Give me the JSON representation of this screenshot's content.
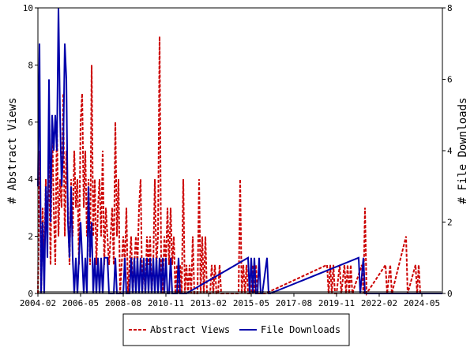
{
  "chart_data": {
    "type": "line",
    "title": "",
    "ylabel_left": "# Abstract Views",
    "ylabel_right": "# File Downloads",
    "ylim_left": [
      0,
      10
    ],
    "ylim_right": [
      0,
      8
    ],
    "yticks_left": [
      "0",
      "2",
      "4",
      "6",
      "8",
      "10"
    ],
    "yticks_right": [
      "0",
      "2",
      "4",
      "6",
      "8"
    ],
    "x_start": "2004-02",
    "x_end": "2025-06",
    "xtick_labels": [
      "2004-02",
      "2006-05",
      "2008-08",
      "2010-11",
      "2013-02",
      "2015-05",
      "2017-08",
      "2019-11",
      "2022-02",
      "2024-05"
    ],
    "grid": false,
    "legend_position": "bottom",
    "series": [
      {
        "name": "Abstract Views",
        "color": "#cc0000",
        "style": "dashed",
        "axis": "left",
        "points": [
          [
            "2004-02",
            0
          ],
          [
            "2004-03",
            5
          ],
          [
            "2004-04",
            0
          ],
          [
            "2004-05",
            3
          ],
          [
            "2004-06",
            1
          ],
          [
            "2004-07",
            4
          ],
          [
            "2004-08",
            2
          ],
          [
            "2004-09",
            5
          ],
          [
            "2004-10",
            1
          ],
          [
            "2004-11",
            6
          ],
          [
            "2004-12",
            3
          ],
          [
            "2005-01",
            1
          ],
          [
            "2005-02",
            6
          ],
          [
            "2005-03",
            2
          ],
          [
            "2005-04",
            4
          ],
          [
            "2005-05",
            3
          ],
          [
            "2005-06",
            7
          ],
          [
            "2005-07",
            2
          ],
          [
            "2005-08",
            5
          ],
          [
            "2005-09",
            3
          ],
          [
            "2005-10",
            1
          ],
          [
            "2005-11",
            4
          ],
          [
            "2005-12",
            2
          ],
          [
            "2006-01",
            5
          ],
          [
            "2006-02",
            3
          ],
          [
            "2006-03",
            4
          ],
          [
            "2006-04",
            1
          ],
          [
            "2006-05",
            6
          ],
          [
            "2006-06",
            7
          ],
          [
            "2006-07",
            3
          ],
          [
            "2006-08",
            5
          ],
          [
            "2006-09",
            2
          ],
          [
            "2006-10",
            4
          ],
          [
            "2006-11",
            1
          ],
          [
            "2006-12",
            8
          ],
          [
            "2007-01",
            2
          ],
          [
            "2007-02",
            4
          ],
          [
            "2007-03",
            1
          ],
          [
            "2007-04",
            3
          ],
          [
            "2007-05",
            4
          ],
          [
            "2007-06",
            2
          ],
          [
            "2007-07",
            5
          ],
          [
            "2007-08",
            1
          ],
          [
            "2007-09",
            3
          ],
          [
            "2007-10",
            2
          ],
          [
            "2007-11",
            1
          ],
          [
            "2007-12",
            2
          ],
          [
            "2008-01",
            3
          ],
          [
            "2008-02",
            1
          ],
          [
            "2008-03",
            6
          ],
          [
            "2008-04",
            2
          ],
          [
            "2008-05",
            4
          ],
          [
            "2008-06",
            0
          ],
          [
            "2008-07",
            1
          ],
          [
            "2008-08",
            2
          ],
          [
            "2008-09",
            1
          ],
          [
            "2008-10",
            3
          ],
          [
            "2008-11",
            0
          ],
          [
            "2008-12",
            1
          ],
          [
            "2009-01",
            2
          ],
          [
            "2009-02",
            0
          ],
          [
            "2009-03",
            1
          ],
          [
            "2009-04",
            2
          ],
          [
            "2009-05",
            1
          ],
          [
            "2009-06",
            3
          ],
          [
            "2009-07",
            4
          ],
          [
            "2009-08",
            0
          ],
          [
            "2009-09",
            1
          ],
          [
            "2009-10",
            0
          ],
          [
            "2009-11",
            2
          ],
          [
            "2009-12",
            1
          ],
          [
            "2010-01",
            2
          ],
          [
            "2010-02",
            0
          ],
          [
            "2010-03",
            1
          ],
          [
            "2010-04",
            4
          ],
          [
            "2010-05",
            1
          ],
          [
            "2010-06",
            2
          ],
          [
            "2010-07",
            9
          ],
          [
            "2010-08",
            1
          ],
          [
            "2010-09",
            0
          ],
          [
            "2010-10",
            2
          ],
          [
            "2010-11",
            1
          ],
          [
            "2010-12",
            3
          ],
          [
            "2011-01",
            1
          ],
          [
            "2011-02",
            3
          ],
          [
            "2011-03",
            1
          ],
          [
            "2011-04",
            2
          ],
          [
            "2011-05",
            0
          ],
          [
            "2011-06",
            1
          ],
          [
            "2011-07",
            0
          ],
          [
            "2011-08",
            1
          ],
          [
            "2011-09",
            0
          ],
          [
            "2011-10",
            4
          ],
          [
            "2011-11",
            0
          ],
          [
            "2011-12",
            1
          ],
          [
            "2012-01",
            0
          ],
          [
            "2012-02",
            1
          ],
          [
            "2012-03",
            0
          ],
          [
            "2012-04",
            2
          ],
          [
            "2012-05",
            0
          ],
          [
            "2012-06",
            0
          ],
          [
            "2012-07",
            0
          ],
          [
            "2012-08",
            4
          ],
          [
            "2012-09",
            0
          ],
          [
            "2012-10",
            2
          ],
          [
            "2012-11",
            0
          ],
          [
            "2012-12",
            2
          ],
          [
            "2013-01",
            0
          ],
          [
            "2013-02",
            0
          ],
          [
            "2013-03",
            0
          ],
          [
            "2013-04",
            1
          ],
          [
            "2013-05",
            0
          ],
          [
            "2013-06",
            1
          ],
          [
            "2013-07",
            0
          ],
          [
            "2013-08",
            0
          ],
          [
            "2013-09",
            1
          ],
          [
            "2013-10",
            0
          ],
          [
            "2013-11",
            0
          ],
          [
            "2013-12",
            0
          ],
          [
            "2014-01",
            0
          ],
          [
            "2014-02",
            0
          ],
          [
            "2014-03",
            0
          ],
          [
            "2014-04",
            0
          ],
          [
            "2014-05",
            0
          ],
          [
            "2014-06",
            0
          ],
          [
            "2014-07",
            0
          ],
          [
            "2014-08",
            0
          ],
          [
            "2014-09",
            0
          ],
          [
            "2014-10",
            4
          ],
          [
            "2014-11",
            0
          ],
          [
            "2014-12",
            1
          ],
          [
            "2015-01",
            0
          ],
          [
            "2015-02",
            1
          ],
          [
            "2015-03",
            0
          ],
          [
            "2015-04",
            0
          ],
          [
            "2015-05",
            0
          ],
          [
            "2015-06",
            1
          ],
          [
            "2015-07",
            0
          ],
          [
            "2015-08",
            1
          ],
          [
            "2015-09",
            0
          ],
          [
            "2015-10",
            0
          ],
          [
            "2015-11",
            0
          ],
          [
            "2015-12",
            0
          ],
          [
            "2016-01",
            0
          ],
          [
            "2016-02",
            0
          ],
          [
            "2019-05",
            1
          ],
          [
            "2019-06",
            0
          ],
          [
            "2019-07",
            1
          ],
          [
            "2019-08",
            0
          ],
          [
            "2019-09",
            1
          ],
          [
            "2019-10",
            0
          ],
          [
            "2019-11",
            0
          ],
          [
            "2020-01",
            1
          ],
          [
            "2020-02",
            0
          ],
          [
            "2020-04",
            1
          ],
          [
            "2020-05",
            0
          ],
          [
            "2020-06",
            1
          ],
          [
            "2020-07",
            0
          ],
          [
            "2020-08",
            1
          ],
          [
            "2020-09",
            0
          ],
          [
            "2021-03",
            1
          ],
          [
            "2021-04",
            0
          ],
          [
            "2021-05",
            3
          ],
          [
            "2021-06",
            0
          ],
          [
            "2022-06",
            1
          ],
          [
            "2022-07",
            0
          ],
          [
            "2022-09",
            1
          ],
          [
            "2022-10",
            0
          ],
          [
            "2023-07",
            2
          ],
          [
            "2023-08",
            0
          ],
          [
            "2024-01",
            1
          ],
          [
            "2024-02",
            0
          ],
          [
            "2024-03",
            1
          ],
          [
            "2024-04",
            0
          ],
          [
            "2025-06",
            0
          ]
        ]
      },
      {
        "name": "File Downloads",
        "color": "#0000aa",
        "style": "solid",
        "axis": "right",
        "points": [
          [
            "2004-02",
            3
          ],
          [
            "2004-03",
            7
          ],
          [
            "2004-04",
            0
          ],
          [
            "2004-05",
            2
          ],
          [
            "2004-06",
            0
          ],
          [
            "2004-07",
            3
          ],
          [
            "2004-08",
            1
          ],
          [
            "2004-09",
            6
          ],
          [
            "2004-10",
            2
          ],
          [
            "2004-11",
            5
          ],
          [
            "2004-12",
            4
          ],
          [
            "2005-01",
            5
          ],
          [
            "2005-02",
            4
          ],
          [
            "2005-03",
            8
          ],
          [
            "2005-04",
            5
          ],
          [
            "2005-05",
            3
          ],
          [
            "2005-06",
            4
          ],
          [
            "2005-07",
            7
          ],
          [
            "2005-08",
            6
          ],
          [
            "2005-09",
            2
          ],
          [
            "2005-10",
            1
          ],
          [
            "2005-11",
            3
          ],
          [
            "2005-12",
            1
          ],
          [
            "2006-01",
            0
          ],
          [
            "2006-02",
            1
          ],
          [
            "2006-03",
            0
          ],
          [
            "2006-04",
            1
          ],
          [
            "2006-05",
            2
          ],
          [
            "2006-06",
            1
          ],
          [
            "2006-07",
            0
          ],
          [
            "2006-08",
            1
          ],
          [
            "2006-09",
            0
          ],
          [
            "2006-10",
            3
          ],
          [
            "2006-11",
            1
          ],
          [
            "2006-12",
            2
          ],
          [
            "2007-01",
            0
          ],
          [
            "2007-02",
            1
          ],
          [
            "2007-03",
            0
          ],
          [
            "2007-04",
            1
          ],
          [
            "2007-05",
            0
          ],
          [
            "2007-06",
            1
          ],
          [
            "2007-07",
            0
          ],
          [
            "2007-08",
            1
          ],
          [
            "2007-09",
            1
          ],
          [
            "2007-10",
            1
          ],
          [
            "2007-11",
            0
          ],
          [
            "2007-12",
            0
          ],
          [
            "2008-01",
            0
          ],
          [
            "2008-02",
            0
          ],
          [
            "2008-03",
            1
          ],
          [
            "2008-04",
            0
          ],
          [
            "2008-05",
            0
          ],
          [
            "2008-06",
            0
          ],
          [
            "2008-07",
            0
          ],
          [
            "2008-08",
            0
          ],
          [
            "2008-09",
            1
          ],
          [
            "2008-10",
            0
          ],
          [
            "2008-11",
            0
          ],
          [
            "2008-12",
            0
          ],
          [
            "2009-01",
            1
          ],
          [
            "2009-02",
            0
          ],
          [
            "2009-03",
            1
          ],
          [
            "2009-04",
            0
          ],
          [
            "2009-05",
            1
          ],
          [
            "2009-06",
            0
          ],
          [
            "2009-07",
            1
          ],
          [
            "2009-08",
            0
          ],
          [
            "2009-09",
            1
          ],
          [
            "2009-10",
            0
          ],
          [
            "2009-11",
            1
          ],
          [
            "2009-12",
            0
          ],
          [
            "2010-01",
            1
          ],
          [
            "2010-02",
            0
          ],
          [
            "2010-03",
            1
          ],
          [
            "2010-04",
            0
          ],
          [
            "2010-05",
            1
          ],
          [
            "2010-06",
            0
          ],
          [
            "2010-07",
            1
          ],
          [
            "2010-08",
            0
          ],
          [
            "2010-09",
            1
          ],
          [
            "2010-10",
            0
          ],
          [
            "2010-11",
            1
          ],
          [
            "2010-12",
            0
          ],
          [
            "2011-01",
            0
          ],
          [
            "2011-02",
            1
          ],
          [
            "2011-03",
            0
          ],
          [
            "2011-04",
            0
          ],
          [
            "2011-05",
            0
          ],
          [
            "2011-06",
            0
          ],
          [
            "2011-07",
            1
          ],
          [
            "2011-08",
            0
          ],
          [
            "2011-09",
            0
          ],
          [
            "2011-10",
            0
          ],
          [
            "2011-11",
            0
          ],
          [
            "2011-12",
            0
          ],
          [
            "2015-03",
            1
          ],
          [
            "2015-04",
            0
          ],
          [
            "2015-05",
            1
          ],
          [
            "2015-06",
            0
          ],
          [
            "2015-07",
            1
          ],
          [
            "2015-08",
            0
          ],
          [
            "2015-09",
            0
          ],
          [
            "2015-10",
            1
          ],
          [
            "2015-11",
            0
          ],
          [
            "2015-12",
            0
          ],
          [
            "2016-03",
            1
          ],
          [
            "2016-04",
            0
          ],
          [
            "2016-05",
            0
          ],
          [
            "2021-01",
            1
          ],
          [
            "2021-02",
            0
          ],
          [
            "2021-04",
            1
          ],
          [
            "2021-05",
            0
          ],
          [
            "2025-06",
            0
          ]
        ]
      }
    ]
  }
}
